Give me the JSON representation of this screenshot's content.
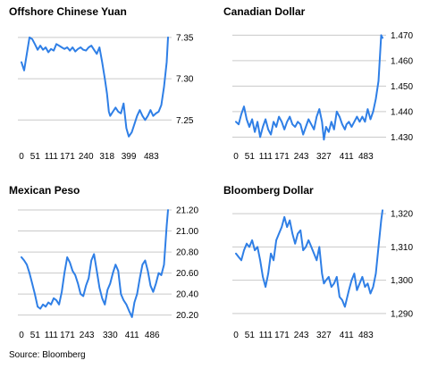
{
  "source": "Source: Bloomberg",
  "chart_data": [
    {
      "type": "line",
      "title": "Offshore Chinese Yuan",
      "x_ticks": [
        0,
        51,
        111,
        171,
        240,
        318,
        399,
        483
      ],
      "y_ticks": [
        7.25,
        7.3,
        7.35
      ],
      "y_tick_labels": [
        "7.25",
        "7.30",
        "7.35"
      ],
      "xlim": [
        0,
        545
      ],
      "ylim": [
        7.22,
        7.365
      ],
      "x": [
        0,
        10,
        20,
        30,
        40,
        50,
        60,
        70,
        80,
        90,
        100,
        110,
        120,
        130,
        140,
        150,
        160,
        170,
        180,
        190,
        200,
        210,
        220,
        230,
        240,
        250,
        260,
        270,
        280,
        290,
        300,
        310,
        318,
        325,
        330,
        340,
        350,
        360,
        370,
        380,
        390,
        399,
        410,
        420,
        430,
        440,
        450,
        460,
        470,
        480,
        490,
        500,
        510,
        520,
        530,
        540,
        545
      ],
      "values": [
        7.32,
        7.31,
        7.33,
        7.35,
        7.348,
        7.342,
        7.335,
        7.34,
        7.335,
        7.338,
        7.332,
        7.336,
        7.334,
        7.342,
        7.34,
        7.338,
        7.336,
        7.338,
        7.334,
        7.338,
        7.333,
        7.336,
        7.338,
        7.335,
        7.334,
        7.338,
        7.34,
        7.335,
        7.33,
        7.338,
        7.32,
        7.3,
        7.282,
        7.26,
        7.255,
        7.26,
        7.265,
        7.26,
        7.258,
        7.27,
        7.24,
        7.23,
        7.235,
        7.245,
        7.255,
        7.262,
        7.255,
        7.25,
        7.255,
        7.262,
        7.255,
        7.258,
        7.26,
        7.268,
        7.29,
        7.32,
        7.35
      ]
    },
    {
      "type": "line",
      "title": "Canadian Dollar",
      "x_ticks": [
        0,
        51,
        111,
        171,
        243,
        327,
        411,
        483
      ],
      "y_ticks": [
        1.43,
        1.44,
        1.45,
        1.46,
        1.47
      ],
      "y_tick_labels": [
        "1.430",
        "1.440",
        "1.450",
        "1.460",
        "1.470"
      ],
      "xlim": [
        0,
        545
      ],
      "ylim": [
        1.427,
        1.474
      ],
      "x": [
        0,
        10,
        20,
        30,
        40,
        50,
        60,
        70,
        80,
        90,
        100,
        110,
        120,
        130,
        140,
        150,
        160,
        170,
        180,
        190,
        200,
        210,
        220,
        230,
        240,
        250,
        260,
        270,
        280,
        290,
        300,
        310,
        320,
        327,
        335,
        345,
        355,
        365,
        375,
        385,
        395,
        405,
        411,
        420,
        430,
        440,
        450,
        460,
        470,
        480,
        490,
        500,
        510,
        520,
        530,
        540,
        545
      ],
      "values": [
        1.436,
        1.435,
        1.439,
        1.442,
        1.437,
        1.434,
        1.437,
        1.432,
        1.436,
        1.43,
        1.434,
        1.437,
        1.433,
        1.431,
        1.436,
        1.434,
        1.438,
        1.436,
        1.433,
        1.436,
        1.438,
        1.435,
        1.434,
        1.436,
        1.435,
        1.431,
        1.434,
        1.437,
        1.435,
        1.433,
        1.438,
        1.441,
        1.436,
        1.429,
        1.434,
        1.432,
        1.436,
        1.433,
        1.44,
        1.438,
        1.435,
        1.433,
        1.435,
        1.436,
        1.434,
        1.436,
        1.438,
        1.436,
        1.438,
        1.436,
        1.441,
        1.437,
        1.44,
        1.445,
        1.452,
        1.47,
        1.469
      ]
    },
    {
      "type": "line",
      "title": "Mexican Peso",
      "x_ticks": [
        0,
        51,
        111,
        171,
        243,
        330,
        411,
        486
      ],
      "y_ticks": [
        20.2,
        20.4,
        20.6,
        20.8,
        21.0,
        21.2
      ],
      "y_tick_labels": [
        "20.20",
        "20.40",
        "20.60",
        "20.80",
        "21.00",
        "21.20"
      ],
      "xlim": [
        0,
        545
      ],
      "ylim": [
        20.12,
        21.26
      ],
      "x": [
        0,
        10,
        20,
        30,
        40,
        50,
        60,
        70,
        80,
        90,
        100,
        110,
        120,
        130,
        140,
        150,
        160,
        170,
        180,
        190,
        200,
        210,
        220,
        230,
        240,
        250,
        260,
        270,
        280,
        290,
        300,
        310,
        320,
        330,
        340,
        350,
        360,
        370,
        380,
        390,
        400,
        411,
        420,
        430,
        440,
        450,
        460,
        470,
        480,
        490,
        500,
        510,
        520,
        530,
        540,
        545
      ],
      "values": [
        20.75,
        20.72,
        20.68,
        20.6,
        20.5,
        20.4,
        20.28,
        20.26,
        20.3,
        20.28,
        20.32,
        20.3,
        20.36,
        20.34,
        20.3,
        20.42,
        20.6,
        20.75,
        20.7,
        20.62,
        20.58,
        20.5,
        20.4,
        20.38,
        20.48,
        20.55,
        20.72,
        20.78,
        20.62,
        20.46,
        20.36,
        20.3,
        20.44,
        20.5,
        20.6,
        20.68,
        20.62,
        20.4,
        20.34,
        20.3,
        20.24,
        20.18,
        20.32,
        20.4,
        20.55,
        20.68,
        20.72,
        20.62,
        20.48,
        20.42,
        20.5,
        20.6,
        20.58,
        20.68,
        21.05,
        21.2
      ]
    },
    {
      "type": "line",
      "title": "Bloomberg Dollar",
      "x_ticks": [
        0,
        51,
        111,
        171,
        243,
        327,
        411,
        483
      ],
      "y_ticks": [
        1290,
        1300,
        1310,
        1320
      ],
      "y_tick_labels": [
        "1,290",
        "1,300",
        "1,310",
        "1,320"
      ],
      "xlim": [
        0,
        545
      ],
      "ylim": [
        1287,
        1323
      ],
      "x": [
        0,
        10,
        20,
        30,
        40,
        50,
        60,
        70,
        80,
        90,
        100,
        110,
        120,
        130,
        140,
        150,
        160,
        170,
        180,
        190,
        200,
        210,
        220,
        230,
        240,
        250,
        260,
        270,
        280,
        290,
        300,
        310,
        320,
        327,
        335,
        345,
        355,
        365,
        375,
        385,
        395,
        405,
        411,
        420,
        430,
        440,
        450,
        460,
        470,
        480,
        490,
        500,
        510,
        520,
        530,
        540,
        545
      ],
      "values": [
        1308,
        1307,
        1306,
        1309,
        1311,
        1310,
        1312,
        1309,
        1310,
        1306,
        1301,
        1298,
        1302,
        1308,
        1306,
        1312,
        1314,
        1316,
        1319,
        1316,
        1318,
        1314,
        1311,
        1314,
        1315,
        1309,
        1310,
        1312,
        1310,
        1308,
        1306,
        1310,
        1302,
        1299,
        1300,
        1301,
        1298,
        1299,
        1301,
        1295,
        1294,
        1292,
        1294,
        1297,
        1300,
        1302,
        1297,
        1299,
        1301,
        1298,
        1299,
        1296,
        1298,
        1302,
        1310,
        1318,
        1321
      ]
    }
  ]
}
